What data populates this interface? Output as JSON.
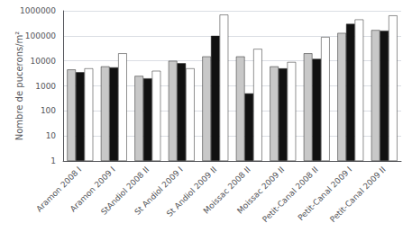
{
  "chart_data": {
    "type": "bar",
    "categories": [
      "Aramon 2008 I",
      "Aramon 2009 I",
      "StAndiol 2008 II",
      "St Andiol 2009 I",
      "St Andiol 2009 II",
      "Moissac 2008 II",
      "Moissac 2009 II",
      "Petit-Canal 2008 II",
      "Petit-Canal 2009 I",
      "Petit-Canal 2009 II"
    ],
    "series": [
      {
        "color": "#c8c8c8",
        "values": [
          4500,
          6000,
          2500,
          10000,
          15000,
          15000,
          6000,
          20000,
          130000,
          170000
        ]
      },
      {
        "color": "#111111",
        "values": [
          3500,
          5500,
          2000,
          8000,
          100000,
          500,
          5000,
          12000,
          300000,
          160000
        ]
      },
      {
        "color": "#ffffff",
        "values": [
          5000,
          20000,
          4000,
          5000,
          700000,
          30000,
          9000,
          90000,
          450000,
          650000
        ]
      }
    ],
    "ylabel": "Nombre de pucerons/m²",
    "log": "y",
    "ylim": [
      1,
      1000000
    ],
    "yticks": [
      1,
      10,
      100,
      1000,
      10000,
      100000,
      1000000
    ],
    "grid": true
  }
}
